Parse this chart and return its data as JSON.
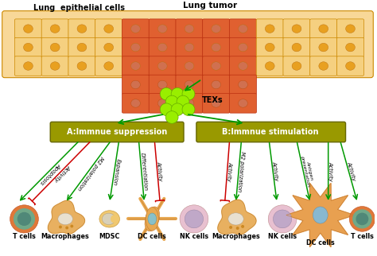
{
  "bg_color": "#ffffff",
  "label_A": "A:Immnue suppression",
  "label_B": "B:Immnue stimulation",
  "texs_label": "TEXs",
  "lung_epithelial_label": "Lung  epithelial cells",
  "lung_tumor_label": "Lung tumor",
  "cell_labels_A": [
    "T cells",
    "Macrophages",
    "MDSC",
    "DC cells",
    "NK cells"
  ],
  "cell_labels_B": [
    "Macrophages",
    "NK cells",
    "DC cells",
    "T cells"
  ],
  "arrow_green": "#009900",
  "arrow_red": "#cc0000",
  "exosome_color": "#99ee00",
  "box_color": "#999900",
  "box_text_color": "#ffffff",
  "normal_cell_color": "#f5d080",
  "normal_cell_edge": "#cc8800",
  "normal_nucleus_color": "#e8a020",
  "tumor_cell_color": "#e06030",
  "tumor_cell_edge": "#bb3010",
  "tumor_nucleus_color": "#d07050",
  "cell_body_orange": "#e8a050",
  "cell_body_light": "#f0c880",
  "cell_nuc_grey": "#d0c8b8",
  "cell_nuc_blue": "#90b8c8",
  "cell_nuc_purple": "#b8a0c0",
  "cell_nuc_teal": "#70b0a0",
  "macrophage_dot_color": "#cc8822"
}
